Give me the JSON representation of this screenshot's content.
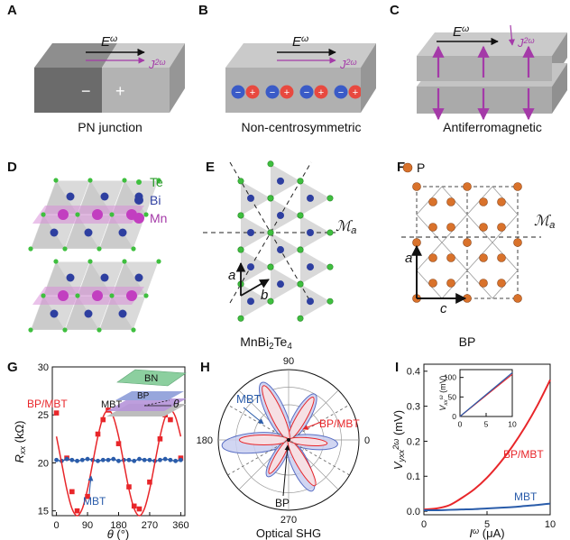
{
  "panels": {
    "A": {
      "label": "A",
      "E": [
        "E",
        "ω"
      ],
      "J": [
        "J",
        "2ω"
      ],
      "minus": "−",
      "plus": "+",
      "caption": "PN junction"
    },
    "B": {
      "label": "B",
      "E": [
        "E",
        "ω"
      ],
      "J": [
        "J",
        "2ω"
      ],
      "minus": "−",
      "plus": "+",
      "caption": "Non-centrosymmetric"
    },
    "C": {
      "label": "C",
      "E": [
        "E",
        "ω"
      ],
      "J": [
        "J",
        "2ω"
      ],
      "caption": "Antiferromagnetic"
    },
    "D": {
      "label": "D",
      "legend": [
        "Te",
        "Bi",
        "Mn"
      ]
    },
    "E": {
      "label": "E",
      "mirror": [
        "ℳ",
        "a"
      ],
      "a": "a",
      "b": "b",
      "caption": [
        "MnBi",
        "2",
        "Te",
        "4"
      ]
    },
    "F": {
      "label": "F",
      "legend": "P",
      "mirror": [
        "ℳ",
        "a"
      ],
      "a": "a",
      "c": "c",
      "caption": "BP"
    }
  },
  "chart_data": [
    {
      "type": "scatter",
      "label": "G",
      "xlabel": [
        "θ",
        " (°)"
      ],
      "ylabel": [
        "R",
        "xx",
        " (kΩ)"
      ],
      "inset": [
        "BN",
        "BP",
        "MBT",
        "θ"
      ],
      "xlim": [
        -12,
        372
      ],
      "ylim": [
        14.5,
        30
      ],
      "xticks": [
        0,
        90,
        180,
        270,
        360
      ],
      "yticks": [
        15,
        20,
        25,
        30
      ],
      "series": [
        {
          "name": "BP/MBT",
          "color": "#e8262a",
          "mode": "markers",
          "marker": "square",
          "x": [
            0,
            30,
            45,
            60,
            90,
            120,
            135,
            150,
            180,
            210,
            225,
            240,
            270,
            300,
            315,
            330,
            360
          ],
          "values": [
            25.2,
            20.5,
            17,
            15,
            16.5,
            23,
            24.5,
            25.5,
            22,
            17.5,
            15.5,
            15.2,
            18,
            22.5,
            25,
            24.5,
            20.5
          ]
        },
        {
          "name": "MBT",
          "color": "#2a5caa",
          "mode": "lines+markers",
          "marker": "circle",
          "x": [
            0,
            15,
            30,
            45,
            60,
            75,
            90,
            105,
            120,
            135,
            150,
            165,
            180,
            195,
            210,
            225,
            240,
            255,
            270,
            285,
            300,
            315,
            330,
            345,
            360
          ],
          "values": [
            20.3,
            20.2,
            20.4,
            20.3,
            20.2,
            20.3,
            20.4,
            20.3,
            20.2,
            20.3,
            20.3,
            20.4,
            20.2,
            20.3,
            20.3,
            20.2,
            20.4,
            20.3,
            20.3,
            20.2,
            20.3,
            20.4,
            20.3,
            20.2,
            20.3
          ]
        },
        {
          "color": "#e8262a",
          "mode": "line",
          "x": [
            0,
            15,
            30,
            45,
            60,
            75,
            90,
            105,
            120,
            135,
            150,
            165,
            180,
            195,
            210,
            225,
            240,
            255,
            270,
            285,
            300,
            315,
            330,
            345,
            360
          ],
          "values": [
            22.75,
            20,
            17.25,
            15.24,
            14.5,
            15.24,
            17.25,
            20,
            22.75,
            24.76,
            25.5,
            24.76,
            22.75,
            20,
            17.25,
            15.24,
            14.5,
            15.24,
            17.25,
            20,
            22.75,
            24.76,
            25.5,
            24.76,
            22.75
          ]
        }
      ]
    },
    {
      "type": "polar",
      "label": "H",
      "title": "Optical SHG",
      "annotation": "BP",
      "theta_ticks": [
        90,
        0,
        180,
        270
      ],
      "rlim": [
        0,
        1
      ],
      "series": [
        {
          "name": "MBT",
          "color": "#5a6fc4",
          "fill": "#c9cff0",
          "theta": [
            60,
            115,
            185,
            240,
            295,
            355
          ],
          "values": [
            0.75,
            0.9,
            0.95,
            0.6,
            0.8,
            0.7
          ]
        },
        {
          "name": "BP/MBT",
          "color": "#e8262a",
          "fill": "#fde2e2",
          "theta": [
            60,
            115,
            180,
            240,
            300,
            355
          ],
          "values": [
            0.7,
            0.85,
            0.7,
            0.55,
            0.75,
            0.55
          ]
        }
      ]
    },
    {
      "type": "line",
      "label": "I",
      "xlabel": [
        "I",
        "ω",
        " (μA)"
      ],
      "ylabel": [
        "V",
        "yxx",
        "2ω",
        " (mV)"
      ],
      "xlim": [
        0,
        10
      ],
      "ylim": [
        -0.01,
        0.42
      ],
      "xticks": [
        0,
        5,
        10
      ],
      "yticks": [
        {
          "value": 0,
          "label": "0.0"
        },
        0.1,
        0.2,
        0.3,
        0.4
      ],
      "series": [
        {
          "name": "BP/MBT",
          "color": "#e8262a",
          "x": [
            0,
            1,
            2,
            3,
            4,
            5,
            6,
            7,
            8,
            9,
            10
          ],
          "values": [
            0.005,
            0.008,
            0.017,
            0.038,
            0.063,
            0.096,
            0.137,
            0.185,
            0.24,
            0.303,
            0.375
          ]
        },
        {
          "name": "MBT",
          "color": "#2a5caa",
          "x": [
            0,
            1,
            2,
            3,
            4,
            5,
            6,
            7,
            8,
            9,
            10
          ],
          "values": [
            0.003,
            0.003,
            0.004,
            0.005,
            0.006,
            0.008,
            0.01,
            0.012,
            0.015,
            0.018,
            0.022
          ]
        }
      ]
    },
    {
      "type": "line",
      "ylabel": [
        "V",
        "xx",
        "ω",
        " (mV)"
      ],
      "xlim": [
        0,
        10
      ],
      "ylim": [
        0,
        120
      ],
      "xticks": [
        0,
        5,
        10
      ],
      "yticks": [
        0,
        50,
        100
      ],
      "series": [
        {
          "color": "#e8262a",
          "x": [
            0,
            10
          ],
          "values": [
            0,
            108
          ]
        },
        {
          "color": "#2a5caa",
          "x": [
            0,
            10
          ],
          "values": [
            0,
            112
          ]
        }
      ]
    }
  ]
}
